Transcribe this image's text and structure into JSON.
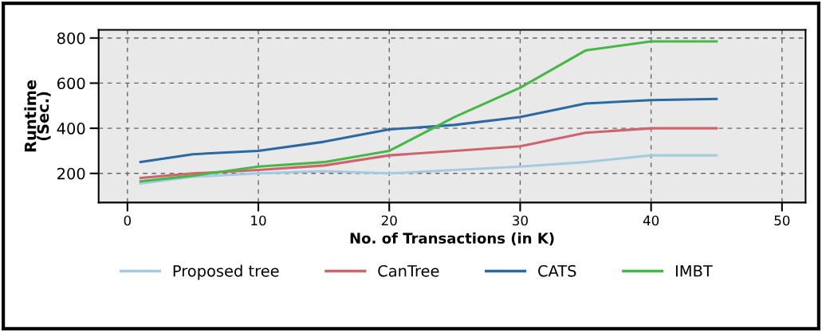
{
  "chart_data": {
    "type": "line",
    "xlabel": "No. of Transactions (in K)",
    "ylabel": "Runtime\n(Sec.)",
    "x": [
      1,
      5,
      10,
      15,
      20,
      25,
      30,
      35,
      40,
      45
    ],
    "series": [
      {
        "name": "Proposed tree",
        "color": "#a6cbe0",
        "values": [
          155,
          185,
          200,
          210,
          200,
          215,
          230,
          250,
          280,
          280
        ]
      },
      {
        "name": "CanTree",
        "color": "#d0646e",
        "values": [
          180,
          200,
          215,
          235,
          280,
          300,
          320,
          380,
          400,
          400
        ]
      },
      {
        "name": "CATS",
        "color": "#2a6aa0",
        "values": [
          250,
          285,
          300,
          340,
          395,
          415,
          450,
          510,
          525,
          530
        ]
      },
      {
        "name": "IMBT",
        "color": "#45b845",
        "values": [
          165,
          190,
          230,
          250,
          300,
          450,
          580,
          745,
          785,
          785
        ]
      }
    ],
    "xlim": [
      -2.2,
      51.8
    ],
    "ylim": [
      71,
      836
    ],
    "xticks": [
      0,
      10,
      20,
      30,
      40,
      50
    ],
    "yticks": [
      200,
      400,
      600,
      800
    ],
    "grid": true,
    "legend": "bottom",
    "line_style": "solid",
    "marker": "none"
  }
}
